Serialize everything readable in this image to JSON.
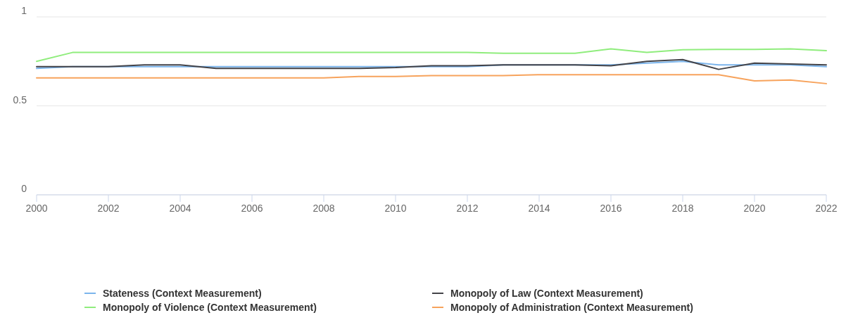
{
  "chart_data": {
    "type": "line",
    "x": [
      2000,
      2001,
      2002,
      2003,
      2004,
      2005,
      2006,
      2007,
      2008,
      2009,
      2010,
      2011,
      2012,
      2013,
      2014,
      2015,
      2016,
      2017,
      2018,
      2019,
      2020,
      2021,
      2022
    ],
    "series": [
      {
        "name": "Stateness (Context Measurement)",
        "color": "#7cb5ec",
        "values": [
          0.71,
          0.72,
          0.72,
          0.72,
          0.72,
          0.72,
          0.72,
          0.72,
          0.72,
          0.72,
          0.72,
          0.72,
          0.72,
          0.73,
          0.73,
          0.73,
          0.73,
          0.74,
          0.75,
          0.73,
          0.73,
          0.73,
          0.72
        ]
      },
      {
        "name": "Monopoly of Law (Context Measurement)",
        "color": "#434348",
        "values": [
          0.72,
          0.72,
          0.72,
          0.73,
          0.73,
          0.71,
          0.71,
          0.71,
          0.71,
          0.71,
          0.715,
          0.725,
          0.725,
          0.73,
          0.73,
          0.73,
          0.725,
          0.75,
          0.76,
          0.705,
          0.74,
          0.735,
          0.73
        ]
      },
      {
        "name": "Monopoly of Violence (Context Measurement)",
        "color": "#90ed7d",
        "values": [
          0.75,
          0.8,
          0.8,
          0.8,
          0.8,
          0.8,
          0.8,
          0.8,
          0.8,
          0.8,
          0.8,
          0.8,
          0.8,
          0.795,
          0.795,
          0.795,
          0.82,
          0.8,
          0.815,
          0.817,
          0.817,
          0.82,
          0.81
        ]
      },
      {
        "name": "Monopoly of Administration (Context Measurement)",
        "color": "#f7a35c",
        "values": [
          0.657,
          0.657,
          0.657,
          0.657,
          0.657,
          0.657,
          0.657,
          0.657,
          0.657,
          0.665,
          0.665,
          0.67,
          0.67,
          0.67,
          0.675,
          0.675,
          0.675,
          0.675,
          0.675,
          0.675,
          0.64,
          0.645,
          0.625
        ]
      }
    ],
    "xlim": [
      2000,
      2022
    ],
    "xticks": [
      2000,
      2002,
      2004,
      2006,
      2008,
      2010,
      2012,
      2014,
      2016,
      2018,
      2020,
      2022
    ],
    "ylim": [
      0,
      1
    ],
    "yticks": [
      0,
      0.5,
      1
    ],
    "grid": "y",
    "legend": "bottom",
    "marker": "none",
    "line_style": "solid"
  }
}
